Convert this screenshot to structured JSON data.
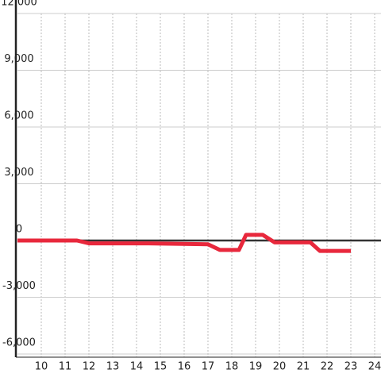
{
  "chart_data": {
    "type": "line",
    "x": [
      9,
      11.5,
      12,
      14.5,
      17,
      17.5,
      18.3,
      18.6,
      19.3,
      19.8,
      21.3,
      21.7,
      23
    ],
    "series": [
      {
        "color": "#e8283c",
        "values": [
          0,
          0,
          -150,
          -150,
          -200,
          -500,
          -500,
          300,
          300,
          -100,
          -100,
          -550,
          -550
        ]
      }
    ],
    "xlim": [
      9,
      24.4
    ],
    "xticks": [
      10,
      11,
      12,
      13,
      14,
      15,
      16,
      17,
      18,
      19,
      20,
      21,
      22,
      23,
      24
    ],
    "ylim": [
      -6000,
      12000
    ],
    "yticks": [
      {
        "value": 12000,
        "label": "12,000"
      },
      {
        "value": 9000,
        "label": "9,000"
      },
      {
        "value": 6000,
        "label": "6,000"
      },
      {
        "value": 3000,
        "label": "3,000"
      },
      0,
      {
        "value": -3000,
        "label": "-3,000"
      },
      {
        "value": -6000,
        "label": "-6,000"
      }
    ],
    "grid": true
  }
}
